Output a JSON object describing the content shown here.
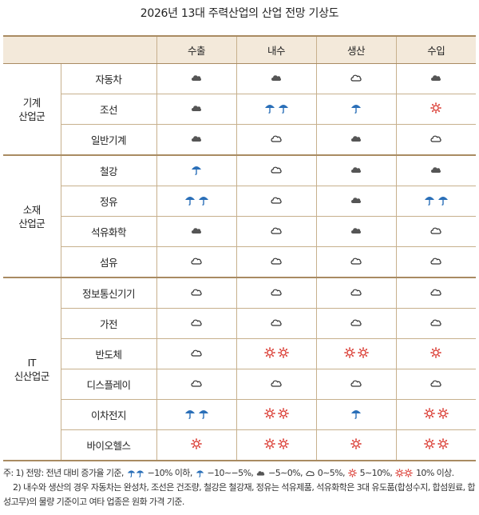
{
  "title": "2026년 13대 주력산업의 산업 전망 기상도",
  "columns": [
    "수출",
    "내수",
    "생산",
    "수입"
  ],
  "groups": [
    {
      "label_line1": "기계",
      "label_line2": "산업군"
    },
    {
      "label_line1": "소재",
      "label_line2": "산업군"
    },
    {
      "label_line1": "IT",
      "label_line2": "신산업군"
    }
  ],
  "rows": [
    {
      "name": "자동차",
      "values": [
        "cloud-filled",
        "cloud-filled",
        "cloud-outline",
        "cloud-filled"
      ]
    },
    {
      "name": "조선",
      "values": [
        "cloud-filled",
        "umbrella-double",
        "umbrella",
        "sun"
      ]
    },
    {
      "name": "일반기계",
      "values": [
        "cloud-filled",
        "cloud-outline",
        "cloud-filled",
        "cloud-outline"
      ]
    },
    {
      "name": "철강",
      "values": [
        "umbrella",
        "cloud-outline",
        "cloud-filled",
        "cloud-filled"
      ]
    },
    {
      "name": "정유",
      "values": [
        "umbrella-double",
        "cloud-outline",
        "cloud-filled",
        "umbrella-double"
      ]
    },
    {
      "name": "석유화학",
      "values": [
        "cloud-filled",
        "cloud-outline",
        "cloud-filled",
        "cloud-outline"
      ]
    },
    {
      "name": "섬유",
      "values": [
        "cloud-outline",
        "cloud-outline",
        "cloud-outline",
        "cloud-outline"
      ]
    },
    {
      "name": "정보통신기기",
      "values": [
        "cloud-outline",
        "cloud-outline",
        "cloud-outline",
        "cloud-outline"
      ]
    },
    {
      "name": "가전",
      "values": [
        "cloud-outline",
        "cloud-outline",
        "cloud-outline",
        "cloud-outline"
      ]
    },
    {
      "name": "반도체",
      "values": [
        "cloud-outline",
        "sun-double",
        "sun-double",
        "sun"
      ]
    },
    {
      "name": "디스플레이",
      "values": [
        "cloud-outline",
        "cloud-outline",
        "cloud-outline",
        "cloud-outline"
      ]
    },
    {
      "name": "이차전지",
      "values": [
        "umbrella-double",
        "sun-double",
        "umbrella",
        "sun-double"
      ]
    },
    {
      "name": "바이오헬스",
      "values": [
        "sun",
        "sun-double",
        "sun",
        "sun-double"
      ]
    }
  ],
  "notes": {
    "note1_prefix": "주: 1) 전망: 전년 대비 증가율 기준, ",
    "note1_a": " −10% 이하, ",
    "note1_b": " −10∼−5%, ",
    "note1_c": " −5∼0%, ",
    "note1_d": " 0∼5%, ",
    "note1_e": " 5∼10%, ",
    "note1_f": " 10% 이상.",
    "note2_line1": "2) 내수와 생산의 경우 자동차는 완성차, 조선은 건조량, 철강은 철강재, 정유는 석유제품, 석유화학은 3대 유도품(합성수지, 합섬원료, 합",
    "note2_line2": "성고무)의 물량 기준이고 여타 업종은 원화 가격 기준."
  },
  "colors": {
    "header_bg": "#f3e9da",
    "border": "#c7b08d",
    "umbrella": "#2a6fb8",
    "sun": "#d9342b",
    "cloud_filled": "#555555",
    "cloud_outline": "#333333"
  }
}
